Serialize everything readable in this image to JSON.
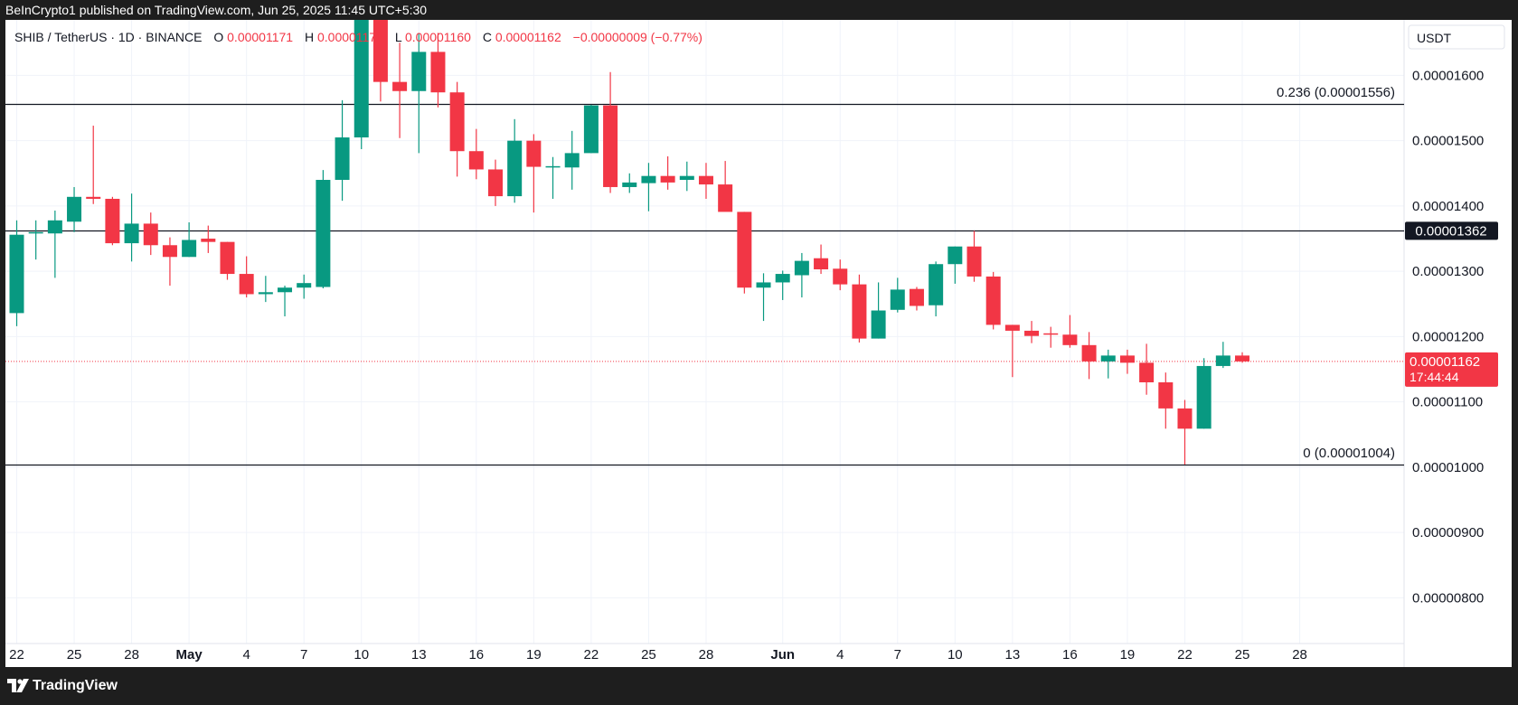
{
  "header": {
    "published": "BeInCrypto1 published on TradingView.com, Jun 25, 2025 11:45 UTC+5:30"
  },
  "legend": {
    "symbol": "SHIB / TetherUS · 1D · BINANCE",
    "o_label": "O",
    "o_value": "0.00001171",
    "h_label": "H",
    "h_value": "0.00001176",
    "l_label": "L",
    "l_value": "0.00001160",
    "c_label": "C",
    "c_value": "0.00001162",
    "change": "−0.00000009 (−0.77%)"
  },
  "axis": {
    "currency": "USDT",
    "price_tag": "0.00001362",
    "current_price_tag": "0.00001162",
    "countdown": "17:44:44"
  },
  "annotations": {
    "fib_0236": "0.236 (0.00001556)",
    "fib_0": "0 (0.00001004)"
  },
  "footer": {
    "brand": "TradingView"
  },
  "colors": {
    "up": "#089981",
    "down": "#f23645",
    "line": "#131722",
    "background": "#ffffff"
  },
  "chart_data": {
    "type": "candlestick",
    "title": "SHIB / TetherUS · 1D · BINANCE",
    "ylim": [
      7.3e-06,
      1.685e-05
    ],
    "y_ticks": [
      {
        "value": 1.6e-05,
        "label": "0.00001600"
      },
      {
        "value": 1.5e-05,
        "label": "0.00001500"
      },
      {
        "value": 1.4e-05,
        "label": "0.00001400"
      },
      {
        "value": 1.3e-05,
        "label": "0.00001300"
      },
      {
        "value": 1.2e-05,
        "label": "0.00001200"
      },
      {
        "value": 1.1e-05,
        "label": "0.00001100"
      },
      {
        "value": 1e-05,
        "label": "0.00001000"
      },
      {
        "value": 9e-06,
        "label": "0.00000900"
      },
      {
        "value": 8e-06,
        "label": "0.00000800"
      }
    ],
    "x_ticks": [
      {
        "index": 0,
        "label": "22"
      },
      {
        "index": 3,
        "label": "25"
      },
      {
        "index": 6,
        "label": "28"
      },
      {
        "index": 9,
        "label": "May"
      },
      {
        "index": 12,
        "label": "4"
      },
      {
        "index": 15,
        "label": "7"
      },
      {
        "index": 18,
        "label": "10"
      },
      {
        "index": 21,
        "label": "13"
      },
      {
        "index": 24,
        "label": "16"
      },
      {
        "index": 27,
        "label": "19"
      },
      {
        "index": 30,
        "label": "22"
      },
      {
        "index": 33,
        "label": "25"
      },
      {
        "index": 36,
        "label": "28"
      },
      {
        "index": 40,
        "label": "Jun"
      },
      {
        "index": 43,
        "label": "4"
      },
      {
        "index": 46,
        "label": "7"
      },
      {
        "index": 49,
        "label": "10"
      },
      {
        "index": 52,
        "label": "13"
      },
      {
        "index": 55,
        "label": "16"
      },
      {
        "index": 58,
        "label": "19"
      },
      {
        "index": 61,
        "label": "22"
      },
      {
        "index": 64,
        "label": "25"
      },
      {
        "index": 67,
        "label": "28"
      }
    ],
    "horizontal_lines": [
      {
        "value": 1.556e-05,
        "label": "0.236 (0.00001556)"
      },
      {
        "value": 1.362e-05,
        "label": "0.00001362"
      },
      {
        "value": 1.004e-05,
        "label": "0 (0.00001004)"
      }
    ],
    "current_price": 1.162e-05,
    "candles": [
      {
        "o": 1.236e-05,
        "h": 1.378e-05,
        "l": 1.216e-05,
        "c": 1.356e-05
      },
      {
        "o": 1.358e-05,
        "h": 1.378e-05,
        "l": 1.318e-05,
        "c": 1.36e-05
      },
      {
        "o": 1.358e-05,
        "h": 1.393e-05,
        "l": 1.29e-05,
        "c": 1.378e-05
      },
      {
        "o": 1.376e-05,
        "h": 1.429e-05,
        "l": 1.36e-05,
        "c": 1.414e-05
      },
      {
        "o": 1.414e-05,
        "h": 1.523e-05,
        "l": 1.403e-05,
        "c": 1.411e-05
      },
      {
        "o": 1.411e-05,
        "h": 1.414e-05,
        "l": 1.34e-05,
        "c": 1.343e-05
      },
      {
        "o": 1.343e-05,
        "h": 1.419e-05,
        "l": 1.315e-05,
        "c": 1.373e-05
      },
      {
        "o": 1.373e-05,
        "h": 1.39e-05,
        "l": 1.325e-05,
        "c": 1.34e-05
      },
      {
        "o": 1.34e-05,
        "h": 1.352e-05,
        "l": 1.278e-05,
        "c": 1.322e-05
      },
      {
        "o": 1.322e-05,
        "h": 1.375e-05,
        "l": 1.322e-05,
        "c": 1.348e-05
      },
      {
        "o": 1.35e-05,
        "h": 1.37e-05,
        "l": 1.328e-05,
        "c": 1.345e-05
      },
      {
        "o": 1.345e-05,
        "h": 1.345e-05,
        "l": 1.287e-05,
        "c": 1.296e-05
      },
      {
        "o": 1.296e-05,
        "h": 1.323e-05,
        "l": 1.26e-05,
        "c": 1.265e-05
      },
      {
        "o": 1.265e-05,
        "h": 1.293e-05,
        "l": 1.253e-05,
        "c": 1.268e-05
      },
      {
        "o": 1.268e-05,
        "h": 1.278e-05,
        "l": 1.231e-05,
        "c": 1.275e-05
      },
      {
        "o": 1.275e-05,
        "h": 1.295e-05,
        "l": 1.258e-05,
        "c": 1.282e-05
      },
      {
        "o": 1.276e-05,
        "h": 1.455e-05,
        "l": 1.274e-05,
        "c": 1.44e-05
      },
      {
        "o": 1.44e-05,
        "h": 1.562e-05,
        "l": 1.408e-05,
        "c": 1.505e-05
      },
      {
        "o": 1.505e-05,
        "h": 1.701e-05,
        "l": 1.487e-05,
        "c": 1.695e-05
      },
      {
        "o": 1.695e-05,
        "h": 1.701e-05,
        "l": 1.56e-05,
        "c": 1.59e-05
      },
      {
        "o": 1.59e-05,
        "h": 1.65e-05,
        "l": 1.504e-05,
        "c": 1.576e-05
      },
      {
        "o": 1.576e-05,
        "h": 1.665e-05,
        "l": 1.481e-05,
        "c": 1.636e-05
      },
      {
        "o": 1.636e-05,
        "h": 1.665e-05,
        "l": 1.551e-05,
        "c": 1.574e-05
      },
      {
        "o": 1.574e-05,
        "h": 1.59e-05,
        "l": 1.445e-05,
        "c": 1.484e-05
      },
      {
        "o": 1.484e-05,
        "h": 1.518e-05,
        "l": 1.441e-05,
        "c": 1.456e-05
      },
      {
        "o": 1.456e-05,
        "h": 1.471e-05,
        "l": 1.4e-05,
        "c": 1.415e-05
      },
      {
        "o": 1.415e-05,
        "h": 1.533e-05,
        "l": 1.405e-05,
        "c": 1.5e-05
      },
      {
        "o": 1.5e-05,
        "h": 1.51e-05,
        "l": 1.39e-05,
        "c": 1.46e-05
      },
      {
        "o": 1.46e-05,
        "h": 1.475e-05,
        "l": 1.411e-05,
        "c": 1.461e-05
      },
      {
        "o": 1.459e-05,
        "h": 1.515e-05,
        "l": 1.425e-05,
        "c": 1.481e-05
      },
      {
        "o": 1.481e-05,
        "h": 1.555e-05,
        "l": 1.481e-05,
        "c": 1.554e-05
      },
      {
        "o": 1.554e-05,
        "h": 1.605e-05,
        "l": 1.42e-05,
        "c": 1.429e-05
      },
      {
        "o": 1.429e-05,
        "h": 1.45e-05,
        "l": 1.42e-05,
        "c": 1.436e-05
      },
      {
        "o": 1.435e-05,
        "h": 1.466e-05,
        "l": 1.392e-05,
        "c": 1.446e-05
      },
      {
        "o": 1.446e-05,
        "h": 1.476e-05,
        "l": 1.425e-05,
        "c": 1.436e-05
      },
      {
        "o": 1.44e-05,
        "h": 1.468e-05,
        "l": 1.423e-05,
        "c": 1.446e-05
      },
      {
        "o": 1.446e-05,
        "h": 1.466e-05,
        "l": 1.411e-05,
        "c": 1.433e-05
      },
      {
        "o": 1.433e-05,
        "h": 1.469e-05,
        "l": 1.393e-05,
        "c": 1.391e-05
      },
      {
        "o": 1.391e-05,
        "h": 1.391e-05,
        "l": 1.266e-05,
        "c": 1.275e-05
      },
      {
        "o": 1.275e-05,
        "h": 1.297e-05,
        "l": 1.224e-05,
        "c": 1.283e-05
      },
      {
        "o": 1.283e-05,
        "h": 1.301e-05,
        "l": 1.256e-05,
        "c": 1.296e-05
      },
      {
        "o": 1.294e-05,
        "h": 1.328e-05,
        "l": 1.26e-05,
        "c": 1.316e-05
      },
      {
        "o": 1.32e-05,
        "h": 1.341e-05,
        "l": 1.296e-05,
        "c": 1.303e-05
      },
      {
        "o": 1.304e-05,
        "h": 1.318e-05,
        "l": 1.271e-05,
        "c": 1.28e-05
      },
      {
        "o": 1.28e-05,
        "h": 1.295e-05,
        "l": 1.191e-05,
        "c": 1.197e-05
      },
      {
        "o": 1.197e-05,
        "h": 1.283e-05,
        "l": 1.197e-05,
        "c": 1.24e-05
      },
      {
        "o": 1.241e-05,
        "h": 1.29e-05,
        "l": 1.237e-05,
        "c": 1.272e-05
      },
      {
        "o": 1.273e-05,
        "h": 1.276e-05,
        "l": 1.24e-05,
        "c": 1.247e-05
      },
      {
        "o": 1.248e-05,
        "h": 1.315e-05,
        "l": 1.231e-05,
        "c": 1.311e-05
      },
      {
        "o": 1.311e-05,
        "h": 1.338e-05,
        "l": 1.281e-05,
        "c": 1.338e-05
      },
      {
        "o": 1.338e-05,
        "h": 1.362e-05,
        "l": 1.284e-05,
        "c": 1.292e-05
      },
      {
        "o": 1.292e-05,
        "h": 1.299e-05,
        "l": 1.211e-05,
        "c": 1.218e-05
      },
      {
        "o": 1.218e-05,
        "h": 1.218e-05,
        "l": 1.138e-05,
        "c": 1.209e-05
      },
      {
        "o": 1.209e-05,
        "h": 1.224e-05,
        "l": 1.19e-05,
        "c": 1.201e-05
      },
      {
        "o": 1.205e-05,
        "h": 1.215e-05,
        "l": 1.183e-05,
        "c": 1.203e-05
      },
      {
        "o": 1.203e-05,
        "h": 1.233e-05,
        "l": 1.183e-05,
        "c": 1.187e-05
      },
      {
        "o": 1.187e-05,
        "h": 1.207e-05,
        "l": 1.135e-05,
        "c": 1.162e-05
      },
      {
        "o": 1.162e-05,
        "h": 1.18e-05,
        "l": 1.136e-05,
        "c": 1.171e-05
      },
      {
        "o": 1.171e-05,
        "h": 1.18e-05,
        "l": 1.143e-05,
        "c": 1.16e-05
      },
      {
        "o": 1.16e-05,
        "h": 1.189e-05,
        "l": 1.111e-05,
        "c": 1.13e-05
      },
      {
        "o": 1.13e-05,
        "h": 1.145e-05,
        "l": 1.059e-05,
        "c": 1.09e-05
      },
      {
        "o": 1.09e-05,
        "h": 1.103e-05,
        "l": 1.004e-05,
        "c": 1.059e-05
      },
      {
        "o": 1.059e-05,
        "h": 1.167e-05,
        "l": 1.059e-05,
        "c": 1.155e-05
      },
      {
        "o": 1.155e-05,
        "h": 1.192e-05,
        "l": 1.152e-05,
        "c": 1.171e-05
      },
      {
        "o": 1.171e-05,
        "h": 1.176e-05,
        "l": 1.16e-05,
        "c": 1.162e-05
      }
    ]
  }
}
